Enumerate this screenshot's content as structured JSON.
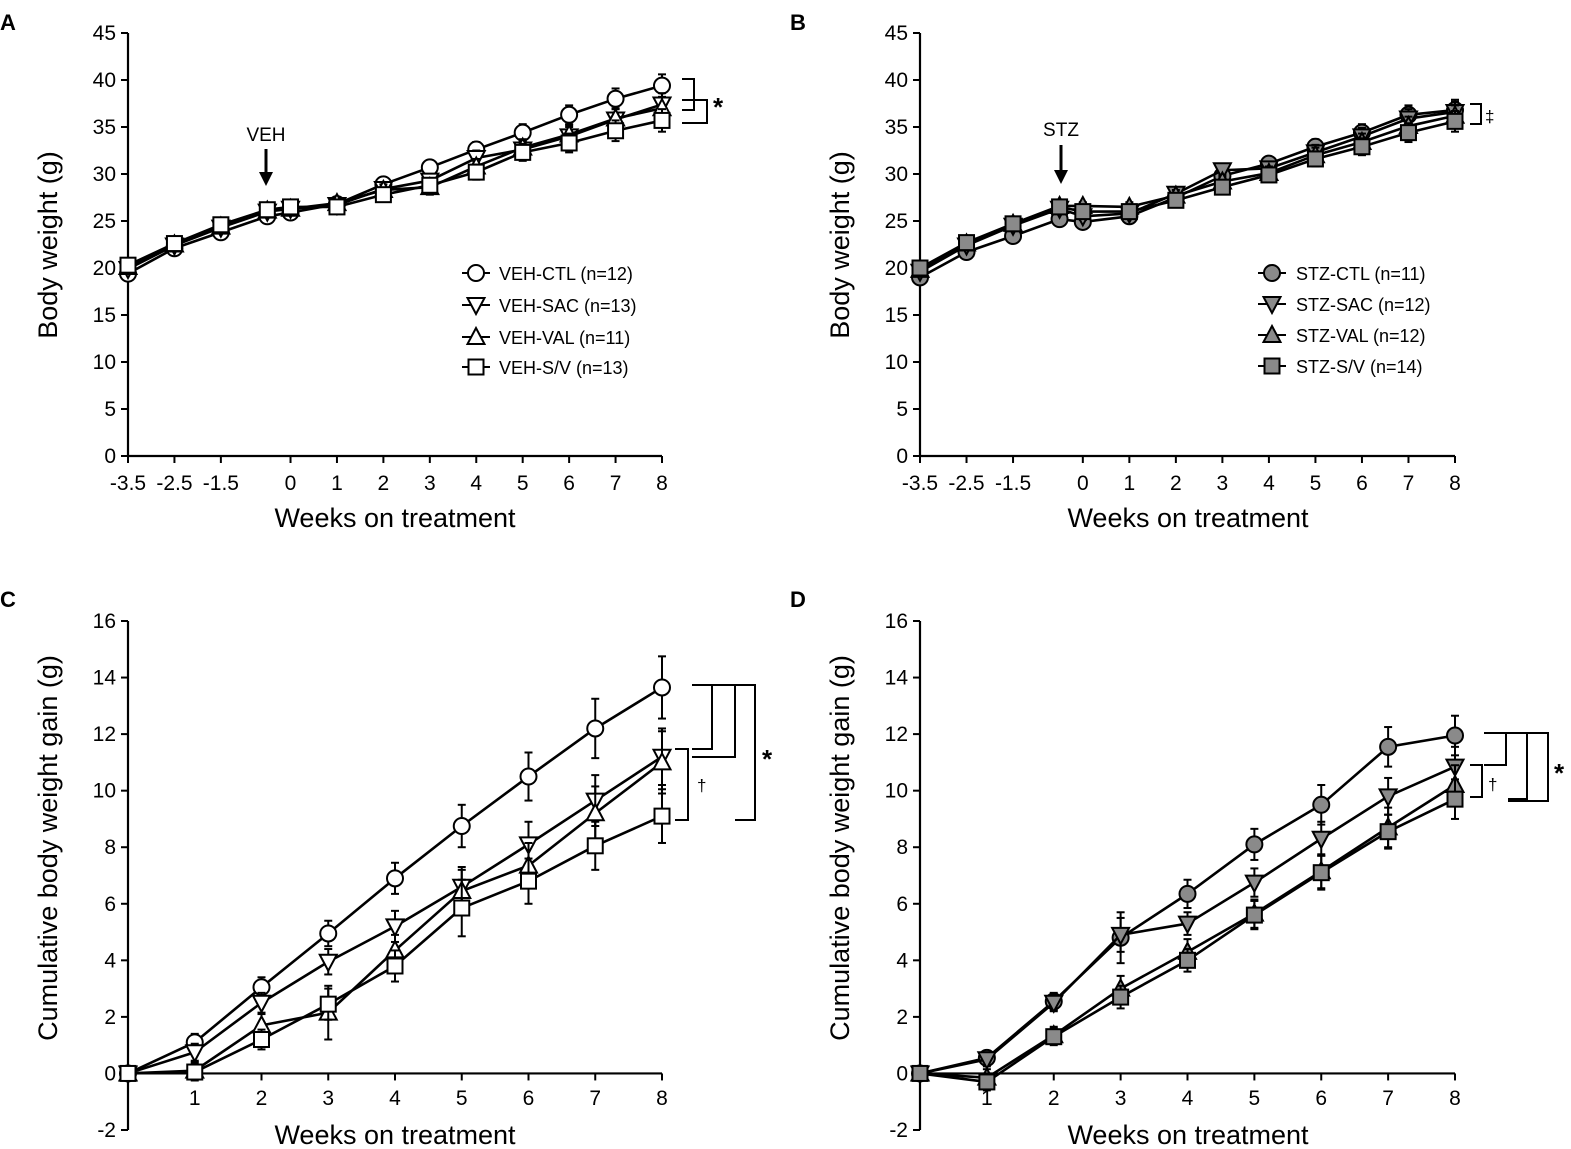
{
  "figure": {
    "marker_styles": {
      "CTL": {
        "shape": "circle"
      },
      "SAC": {
        "shape": "triangle-down"
      },
      "VAL": {
        "shape": "triangle-up"
      },
      "S/V": {
        "shape": "square"
      }
    },
    "colors": {
      "open_fill": "#ffffff",
      "filled_fill": "#8a8a8a",
      "stroke": "#000000"
    }
  },
  "chart_data": [
    {
      "panel": "A",
      "type": "line",
      "xlabel": "Weeks on treatment",
      "ylabel": "Body weight (g)",
      "ylim": [
        0,
        45
      ],
      "y_ticks": [
        "0",
        "5",
        "10",
        "15",
        "20",
        "25",
        "30",
        "35",
        "40",
        "45"
      ],
      "x_tick_values": [
        -3.5,
        -2.5,
        -1.5,
        0,
        1,
        2,
        3,
        4,
        5,
        6,
        7,
        8
      ],
      "x_tick_labels": [
        "-3.5",
        "-2.5",
        "-1.5",
        "0",
        "1",
        "2",
        "3",
        "4",
        "5",
        "6",
        "7",
        "8"
      ],
      "fill": "open",
      "legend_position": "center-right",
      "annotation": {
        "text": "VEH",
        "x": -0.5,
        "arrow": "down"
      },
      "series": [
        {
          "name": "VEH-CTL (n=12)",
          "group": "CTL",
          "x": [
            -3.5,
            -2.5,
            -1.5,
            -0.5,
            0,
            1,
            2,
            3,
            4,
            5,
            6,
            7,
            8
          ],
          "values": [
            19.4,
            22.1,
            23.8,
            25.5,
            25.9,
            26.8,
            28.9,
            30.7,
            32.6,
            34.4,
            36.3,
            38.0,
            39.4
          ],
          "errors": [
            0.3,
            0.3,
            0.4,
            0.4,
            0.4,
            0.5,
            0.6,
            0.7,
            0.8,
            0.9,
            1.0,
            1.1,
            1.2
          ]
        },
        {
          "name": "VEH-SAC (n=13)",
          "group": "SAC",
          "x": [
            -3.5,
            -2.5,
            -1.5,
            -0.5,
            0,
            1,
            2,
            3,
            4,
            5,
            6,
            7,
            8
          ],
          "values": [
            19.9,
            22.4,
            24.3,
            26.0,
            26.3,
            26.7,
            28.4,
            29.3,
            31.7,
            32.6,
            34.0,
            35.8,
            37.4
          ],
          "errors": [
            0.3,
            0.3,
            0.4,
            0.4,
            0.4,
            0.5,
            0.6,
            0.7,
            0.8,
            0.9,
            1.0,
            1.1,
            1.2
          ]
        },
        {
          "name": "VEH-VAL (n=11)",
          "group": "VAL",
          "x": [
            -3.5,
            -2.5,
            -1.5,
            -0.5,
            0,
            1,
            2,
            3,
            4,
            5,
            6,
            7,
            8
          ],
          "values": [
            20.1,
            22.5,
            24.4,
            26.1,
            26.3,
            26.9,
            28.3,
            28.6,
            30.8,
            32.8,
            34.2,
            35.9,
            37.0
          ],
          "errors": [
            0.3,
            0.3,
            0.4,
            0.4,
            0.4,
            0.5,
            0.6,
            0.8,
            0.8,
            0.9,
            1.0,
            1.1,
            1.2
          ]
        },
        {
          "name": "VEH-S/V (n=13)",
          "group": "S/V",
          "x": [
            -3.5,
            -2.5,
            -1.5,
            -0.5,
            0,
            1,
            2,
            3,
            4,
            5,
            6,
            7,
            8
          ],
          "values": [
            20.3,
            22.6,
            24.6,
            26.2,
            26.5,
            26.5,
            27.8,
            28.8,
            30.2,
            32.3,
            33.3,
            34.6,
            35.7
          ],
          "errors": [
            0.3,
            0.3,
            0.4,
            0.4,
            0.4,
            0.5,
            0.6,
            0.7,
            0.8,
            0.9,
            1.0,
            1.1,
            1.2
          ]
        }
      ],
      "significance": [
        {
          "text": "*",
          "from": "VEH-CTL (n=12)",
          "to": "VEH-S/V (n=13)"
        }
      ]
    },
    {
      "panel": "B",
      "type": "line",
      "xlabel": "Weeks on treatment",
      "ylabel": "Body weight (g)",
      "ylim": [
        0,
        45
      ],
      "y_ticks": [
        "0",
        "5",
        "10",
        "15",
        "20",
        "25",
        "30",
        "35",
        "40",
        "45"
      ],
      "x_tick_values": [
        -3.5,
        -2.5,
        -1.5,
        0,
        1,
        2,
        3,
        4,
        5,
        6,
        7,
        8
      ],
      "x_tick_labels": [
        "-3.5",
        "-2.5",
        "-1.5",
        "0",
        "1",
        "2",
        "3",
        "4",
        "5",
        "6",
        "7",
        "8"
      ],
      "fill": "filled",
      "legend_position": "center-right",
      "annotation": {
        "text": "STZ",
        "x": -0.5,
        "arrow": "down"
      },
      "series": [
        {
          "name": "STZ-CTL (n=11)",
          "group": "CTL",
          "x": [
            -3.5,
            -2.5,
            -1.5,
            -0.5,
            0,
            1,
            2,
            3,
            4,
            5,
            6,
            7,
            8
          ],
          "values": [
            19.0,
            21.7,
            23.4,
            25.2,
            24.9,
            25.5,
            27.5,
            29.8,
            31.1,
            32.9,
            34.4,
            36.3,
            36.8
          ],
          "errors": [
            0.3,
            0.3,
            0.4,
            0.4,
            0.4,
            0.5,
            0.6,
            0.7,
            0.7,
            0.8,
            0.9,
            1.0,
            1.1
          ]
        },
        {
          "name": "STZ-SAC (n=12)",
          "group": "SAC",
          "x": [
            -3.5,
            -2.5,
            -1.5,
            -0.5,
            0,
            1,
            2,
            3,
            4,
            5,
            6,
            7,
            8
          ],
          "values": [
            19.6,
            22.4,
            24.5,
            26.3,
            25.5,
            25.8,
            27.9,
            30.4,
            30.6,
            32.3,
            34.0,
            35.9,
            36.6
          ],
          "errors": [
            0.3,
            0.3,
            0.4,
            0.4,
            0.4,
            0.5,
            0.6,
            0.7,
            0.7,
            0.8,
            0.9,
            1.0,
            1.1
          ]
        },
        {
          "name": "STZ-VAL (n=12)",
          "group": "VAL",
          "x": [
            -3.5,
            -2.5,
            -1.5,
            -0.5,
            0,
            1,
            2,
            3,
            4,
            5,
            6,
            7,
            8
          ],
          "values": [
            19.8,
            22.6,
            24.7,
            26.6,
            26.6,
            26.5,
            27.7,
            29.2,
            30.1,
            32.0,
            33.4,
            35.1,
            36.2
          ],
          "errors": [
            0.3,
            0.3,
            0.4,
            0.4,
            0.4,
            0.5,
            0.6,
            0.7,
            0.7,
            0.8,
            0.9,
            1.0,
            1.1
          ]
        },
        {
          "name": "STZ-S/V (n=14)",
          "group": "S/V",
          "x": [
            -3.5,
            -2.5,
            -1.5,
            -0.5,
            0,
            1,
            2,
            3,
            4,
            5,
            6,
            7,
            8
          ],
          "values": [
            20.0,
            22.7,
            24.7,
            26.5,
            26.0,
            26.0,
            27.2,
            28.6,
            29.9,
            31.6,
            32.9,
            34.4,
            35.6
          ],
          "errors": [
            0.3,
            0.3,
            0.4,
            0.4,
            0.4,
            0.5,
            0.6,
            0.7,
            0.7,
            0.8,
            0.9,
            1.0,
            1.1
          ]
        }
      ],
      "significance": [
        {
          "text": "‡",
          "from": "STZ-CTL (n=11)",
          "to": "STZ-S/V (n=14)"
        }
      ]
    },
    {
      "panel": "C",
      "type": "line",
      "xlabel": "Weeks on treatment",
      "ylabel": "Cumulative body weight gain (g)",
      "ylim": [
        -2,
        16
      ],
      "y_ticks": [
        "-2",
        "0",
        "2",
        "4",
        "6",
        "8",
        "10",
        "12",
        "14",
        "16"
      ],
      "x_tick_values": [
        1,
        2,
        3,
        4,
        5,
        6,
        7,
        8
      ],
      "x_tick_labels": [
        "1",
        "2",
        "3",
        "4",
        "5",
        "6",
        "7",
        "8"
      ],
      "fill": "open",
      "series": [
        {
          "name": "VEH-CTL",
          "group": "CTL",
          "x": [
            0,
            1,
            2,
            3,
            4,
            5,
            6,
            7,
            8
          ],
          "values": [
            0,
            1.1,
            3.05,
            4.95,
            6.9,
            8.75,
            10.5,
            12.2,
            13.65
          ],
          "errors": [
            0.1,
            0.3,
            0.35,
            0.45,
            0.55,
            0.75,
            0.85,
            1.05,
            1.1
          ]
        },
        {
          "name": "VEH-SAC",
          "group": "SAC",
          "x": [
            0,
            1,
            2,
            3,
            4,
            5,
            6,
            7,
            8
          ],
          "values": [
            0,
            0.75,
            2.5,
            3.95,
            5.2,
            6.6,
            8.1,
            9.65,
            11.2
          ],
          "errors": [
            0.1,
            0.3,
            0.35,
            0.45,
            0.55,
            0.7,
            0.8,
            0.9,
            1.0
          ]
        },
        {
          "name": "VEH-VAL",
          "group": "VAL",
          "x": [
            0,
            1,
            2,
            3,
            4,
            5,
            6,
            7,
            8
          ],
          "values": [
            0,
            0.1,
            1.7,
            2.15,
            4.35,
            6.45,
            7.35,
            9.2,
            11.0
          ],
          "errors": [
            0.1,
            0.3,
            0.4,
            0.95,
            0.55,
            0.75,
            0.8,
            0.95,
            1.1
          ]
        },
        {
          "name": "VEH-S/V",
          "group": "S/V",
          "x": [
            0,
            1,
            2,
            3,
            4,
            5,
            6,
            7,
            8
          ],
          "values": [
            0,
            0.05,
            1.2,
            2.45,
            3.8,
            5.85,
            6.8,
            8.05,
            9.1
          ],
          "errors": [
            0.1,
            0.3,
            0.35,
            0.55,
            0.55,
            1.0,
            0.8,
            0.85,
            0.95
          ]
        }
      ],
      "significance": [
        {
          "text": "*",
          "from": "VEH-CTL",
          "to": "VEH-S/V"
        },
        {
          "text": "†",
          "from": "VEH-SAC",
          "to": "VEH-S/V"
        }
      ]
    },
    {
      "panel": "D",
      "type": "line",
      "xlabel": "Weeks on treatment",
      "ylabel": "Cumulative body weight gain (g)",
      "ylim": [
        -2,
        16
      ],
      "y_ticks": [
        "-2",
        "0",
        "2",
        "4",
        "6",
        "8",
        "10",
        "12",
        "14",
        "16"
      ],
      "x_tick_values": [
        1,
        2,
        3,
        4,
        5,
        6,
        7,
        8
      ],
      "x_tick_labels": [
        "1",
        "2",
        "3",
        "4",
        "5",
        "6",
        "7",
        "8"
      ],
      "fill": "filled",
      "series": [
        {
          "name": "STZ-CTL",
          "group": "CTL",
          "x": [
            0,
            1,
            2,
            3,
            4,
            5,
            6,
            7,
            8
          ],
          "values": [
            0,
            0.55,
            2.55,
            4.8,
            6.35,
            8.1,
            9.5,
            11.55,
            11.95
          ],
          "errors": [
            0.1,
            0.25,
            0.3,
            0.9,
            0.5,
            0.55,
            0.7,
            0.7,
            0.7
          ]
        },
        {
          "name": "STZ-SAC",
          "group": "SAC",
          "x": [
            0,
            1,
            2,
            3,
            4,
            5,
            6,
            7,
            8
          ],
          "values": [
            0,
            0.5,
            2.5,
            4.9,
            5.3,
            6.75,
            8.3,
            9.8,
            10.85
          ],
          "errors": [
            0.1,
            0.25,
            0.3,
            0.6,
            0.4,
            0.5,
            0.6,
            0.65,
            0.7
          ]
        },
        {
          "name": "STZ-VAL",
          "group": "VAL",
          "x": [
            0,
            1,
            2,
            3,
            4,
            5,
            6,
            7,
            8
          ],
          "values": [
            0,
            -0.15,
            1.35,
            3.0,
            4.3,
            5.65,
            7.15,
            8.7,
            10.2
          ],
          "errors": [
            0.1,
            0.3,
            0.3,
            0.45,
            0.45,
            0.5,
            0.6,
            0.7,
            0.7
          ]
        },
        {
          "name": "STZ-S/V",
          "group": "S/V",
          "x": [
            0,
            1,
            2,
            3,
            4,
            5,
            6,
            7,
            8
          ],
          "values": [
            0,
            -0.3,
            1.3,
            2.7,
            4.0,
            5.6,
            7.1,
            8.55,
            9.7
          ],
          "errors": [
            0.1,
            0.3,
            0.3,
            0.4,
            0.4,
            0.5,
            0.6,
            0.6,
            0.7
          ]
        }
      ],
      "significance": [
        {
          "text": "*",
          "from": "STZ-CTL",
          "to": "STZ-S/V"
        },
        {
          "text": "†",
          "from": "STZ-SAC",
          "to": "STZ-S/V"
        }
      ]
    }
  ]
}
